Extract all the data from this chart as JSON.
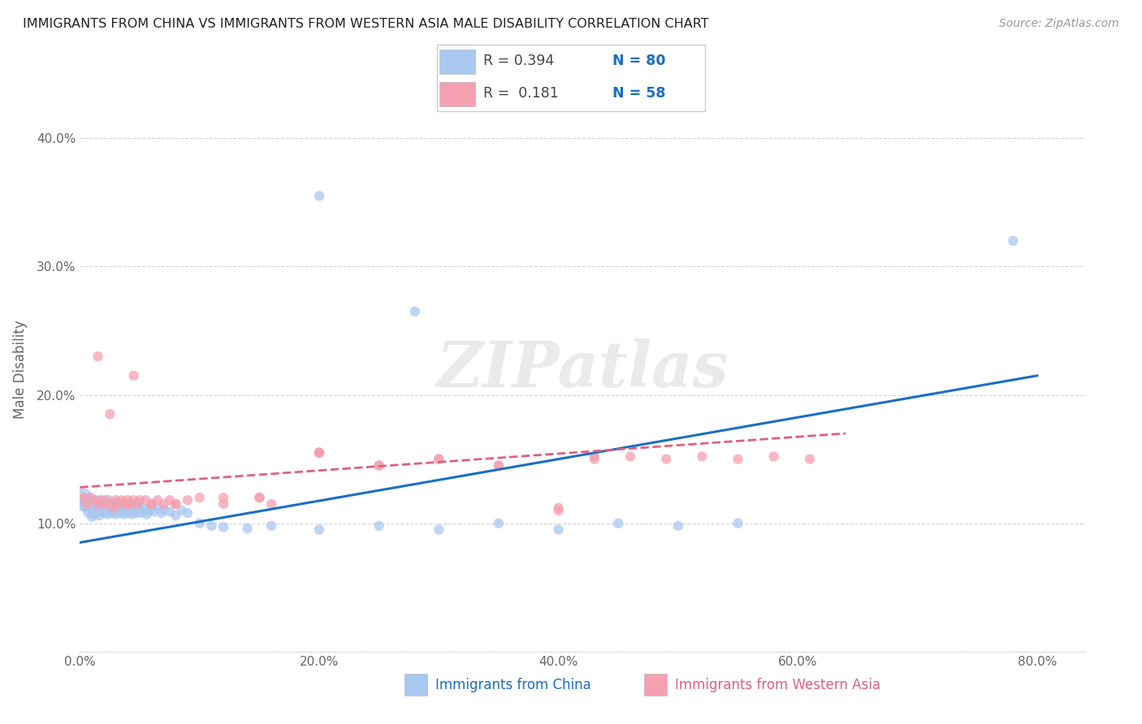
{
  "title": "IMMIGRANTS FROM CHINA VS IMMIGRANTS FROM WESTERN ASIA MALE DISABILITY CORRELATION CHART",
  "source": "Source: ZipAtlas.com",
  "ylabel": "Male Disability",
  "xlim": [
    0.0,
    0.84
  ],
  "ylim": [
    0.0,
    0.44
  ],
  "xticks": [
    0.0,
    0.1,
    0.2,
    0.3,
    0.4,
    0.5,
    0.6,
    0.7,
    0.8
  ],
  "xticklabels": [
    "0.0%",
    "",
    "20.0%",
    "",
    "40.0%",
    "",
    "60.0%",
    "",
    "80.0%"
  ],
  "yticks": [
    0.0,
    0.1,
    0.2,
    0.3,
    0.4
  ],
  "yticklabels": [
    "",
    "10.0%",
    "20.0%",
    "30.0%",
    "40.0%"
  ],
  "color_china": "#a8c8f0",
  "color_western_asia": "#f5a0b0",
  "color_china_line": "#1a6fc4",
  "color_western_asia_line": "#e06080",
  "china_line_x": [
    0.0,
    0.8
  ],
  "china_line_y": [
    0.085,
    0.215
  ],
  "wa_line_x": [
    0.0,
    0.64
  ],
  "wa_line_y": [
    0.128,
    0.17
  ],
  "china_x": [
    0.002,
    0.003,
    0.004,
    0.005,
    0.006,
    0.007,
    0.008,
    0.009,
    0.01,
    0.01,
    0.011,
    0.012,
    0.013,
    0.014,
    0.015,
    0.015,
    0.016,
    0.017,
    0.018,
    0.019,
    0.02,
    0.021,
    0.022,
    0.023,
    0.024,
    0.025,
    0.026,
    0.027,
    0.028,
    0.029,
    0.03,
    0.031,
    0.032,
    0.033,
    0.034,
    0.035,
    0.036,
    0.037,
    0.038,
    0.039,
    0.04,
    0.041,
    0.042,
    0.043,
    0.044,
    0.045,
    0.046,
    0.047,
    0.048,
    0.049,
    0.05,
    0.052,
    0.054,
    0.056,
    0.058,
    0.06,
    0.062,
    0.065,
    0.068,
    0.07,
    0.075,
    0.08,
    0.085,
    0.09,
    0.1,
    0.11,
    0.12,
    0.14,
    0.16,
    0.2,
    0.25,
    0.3,
    0.35,
    0.4,
    0.45,
    0.5,
    0.55,
    0.78,
    0.2,
    0.28
  ],
  "china_y": [
    0.12,
    0.115,
    0.118,
    0.112,
    0.119,
    0.108,
    0.113,
    0.116,
    0.11,
    0.105,
    0.114,
    0.107,
    0.118,
    0.112,
    0.109,
    0.115,
    0.106,
    0.118,
    0.11,
    0.113,
    0.108,
    0.115,
    0.112,
    0.107,
    0.118,
    0.11,
    0.114,
    0.108,
    0.116,
    0.112,
    0.107,
    0.115,
    0.11,
    0.113,
    0.108,
    0.116,
    0.112,
    0.107,
    0.115,
    0.11,
    0.113,
    0.108,
    0.116,
    0.112,
    0.107,
    0.115,
    0.11,
    0.113,
    0.108,
    0.116,
    0.112,
    0.108,
    0.111,
    0.107,
    0.11,
    0.113,
    0.109,
    0.112,
    0.108,
    0.111,
    0.109,
    0.106,
    0.11,
    0.108,
    0.1,
    0.098,
    0.097,
    0.096,
    0.098,
    0.095,
    0.098,
    0.095,
    0.1,
    0.095,
    0.1,
    0.098,
    0.1,
    0.32,
    0.355,
    0.265
  ],
  "china_sizes": [
    300,
    180,
    80,
    80,
    80,
    80,
    80,
    80,
    80,
    80,
    80,
    80,
    80,
    80,
    80,
    80,
    80,
    80,
    80,
    80,
    80,
    80,
    80,
    80,
    80,
    80,
    80,
    80,
    80,
    80,
    80,
    80,
    80,
    80,
    80,
    80,
    80,
    80,
    80,
    80,
    80,
    80,
    80,
    80,
    80,
    80,
    80,
    80,
    80,
    80,
    80,
    80,
    80,
    80,
    80,
    80,
    80,
    80,
    80,
    80,
    80,
    80,
    80,
    80,
    80,
    80,
    80,
    80,
    80,
    80,
    80,
    80,
    80,
    80,
    80,
    80,
    80,
    80,
    80,
    80
  ],
  "wa_x": [
    0.003,
    0.006,
    0.009,
    0.012,
    0.015,
    0.018,
    0.02,
    0.022,
    0.025,
    0.028,
    0.03,
    0.032,
    0.035,
    0.038,
    0.04,
    0.042,
    0.045,
    0.048,
    0.05,
    0.055,
    0.06,
    0.065,
    0.07,
    0.075,
    0.08,
    0.09,
    0.1,
    0.12,
    0.15,
    0.2,
    0.045,
    0.15,
    0.2,
    0.25,
    0.3,
    0.35,
    0.4,
    0.43,
    0.46,
    0.49,
    0.52,
    0.55,
    0.58,
    0.61,
    0.015,
    0.025,
    0.04,
    0.06,
    0.08,
    0.12,
    0.16,
    0.2,
    0.25,
    0.3,
    0.35,
    0.4,
    0.43
  ],
  "wa_y": [
    0.12,
    0.115,
    0.12,
    0.118,
    0.115,
    0.118,
    0.115,
    0.118,
    0.115,
    0.112,
    0.118,
    0.115,
    0.118,
    0.115,
    0.118,
    0.115,
    0.118,
    0.115,
    0.118,
    0.118,
    0.115,
    0.118,
    0.115,
    0.118,
    0.115,
    0.118,
    0.12,
    0.12,
    0.12,
    0.155,
    0.215,
    0.12,
    0.155,
    0.145,
    0.15,
    0.145,
    0.112,
    0.15,
    0.152,
    0.15,
    0.152,
    0.15,
    0.152,
    0.15,
    0.23,
    0.185,
    0.115,
    0.115,
    0.115,
    0.115,
    0.115,
    0.155,
    0.145,
    0.15,
    0.145,
    0.11,
    0.152
  ],
  "wa_sizes": [
    80,
    80,
    80,
    80,
    80,
    80,
    80,
    80,
    80,
    80,
    80,
    80,
    80,
    80,
    80,
    80,
    80,
    80,
    80,
    80,
    80,
    80,
    80,
    80,
    80,
    80,
    80,
    80,
    80,
    80,
    80,
    80,
    80,
    80,
    80,
    80,
    80,
    80,
    80,
    80,
    80,
    80,
    80,
    80,
    80,
    80,
    80,
    80,
    80,
    80,
    80,
    80,
    80,
    80,
    80,
    80,
    80
  ]
}
